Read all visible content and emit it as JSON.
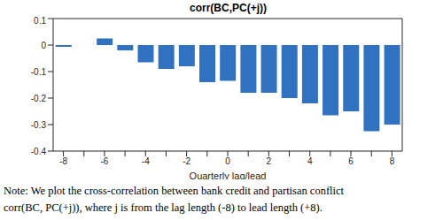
{
  "chart_data": {
    "type": "bar",
    "title": "corr(BC,PC(+j))",
    "x_label": "Quarterly lag/lead",
    "categories": [
      "-8",
      null,
      "-6",
      null,
      "-4",
      null,
      "-2",
      null,
      "0",
      null,
      "2",
      null,
      "4",
      null,
      "6",
      null,
      "8"
    ],
    "values": [
      -0.007,
      0,
      0.025,
      -0.02,
      -0.065,
      -0.09,
      -0.08,
      -0.14,
      -0.135,
      -0.18,
      -0.18,
      -0.2,
      -0.22,
      -0.265,
      -0.25,
      -0.325,
      -0.3
    ],
    "color": "#3072c0",
    "ylim": [
      -0.4,
      0.1
    ],
    "yticks": [
      -0.4,
      -0.3,
      -0.2,
      -0.1,
      0,
      0.1
    ],
    "grid": false,
    "annotations": [
      "Note: We plot the cross-correlation between bank credit and partisan conflict",
      "corr(BC, PC(+j)), where j is from the lag length (-8) to lead length (+8)."
    ]
  }
}
